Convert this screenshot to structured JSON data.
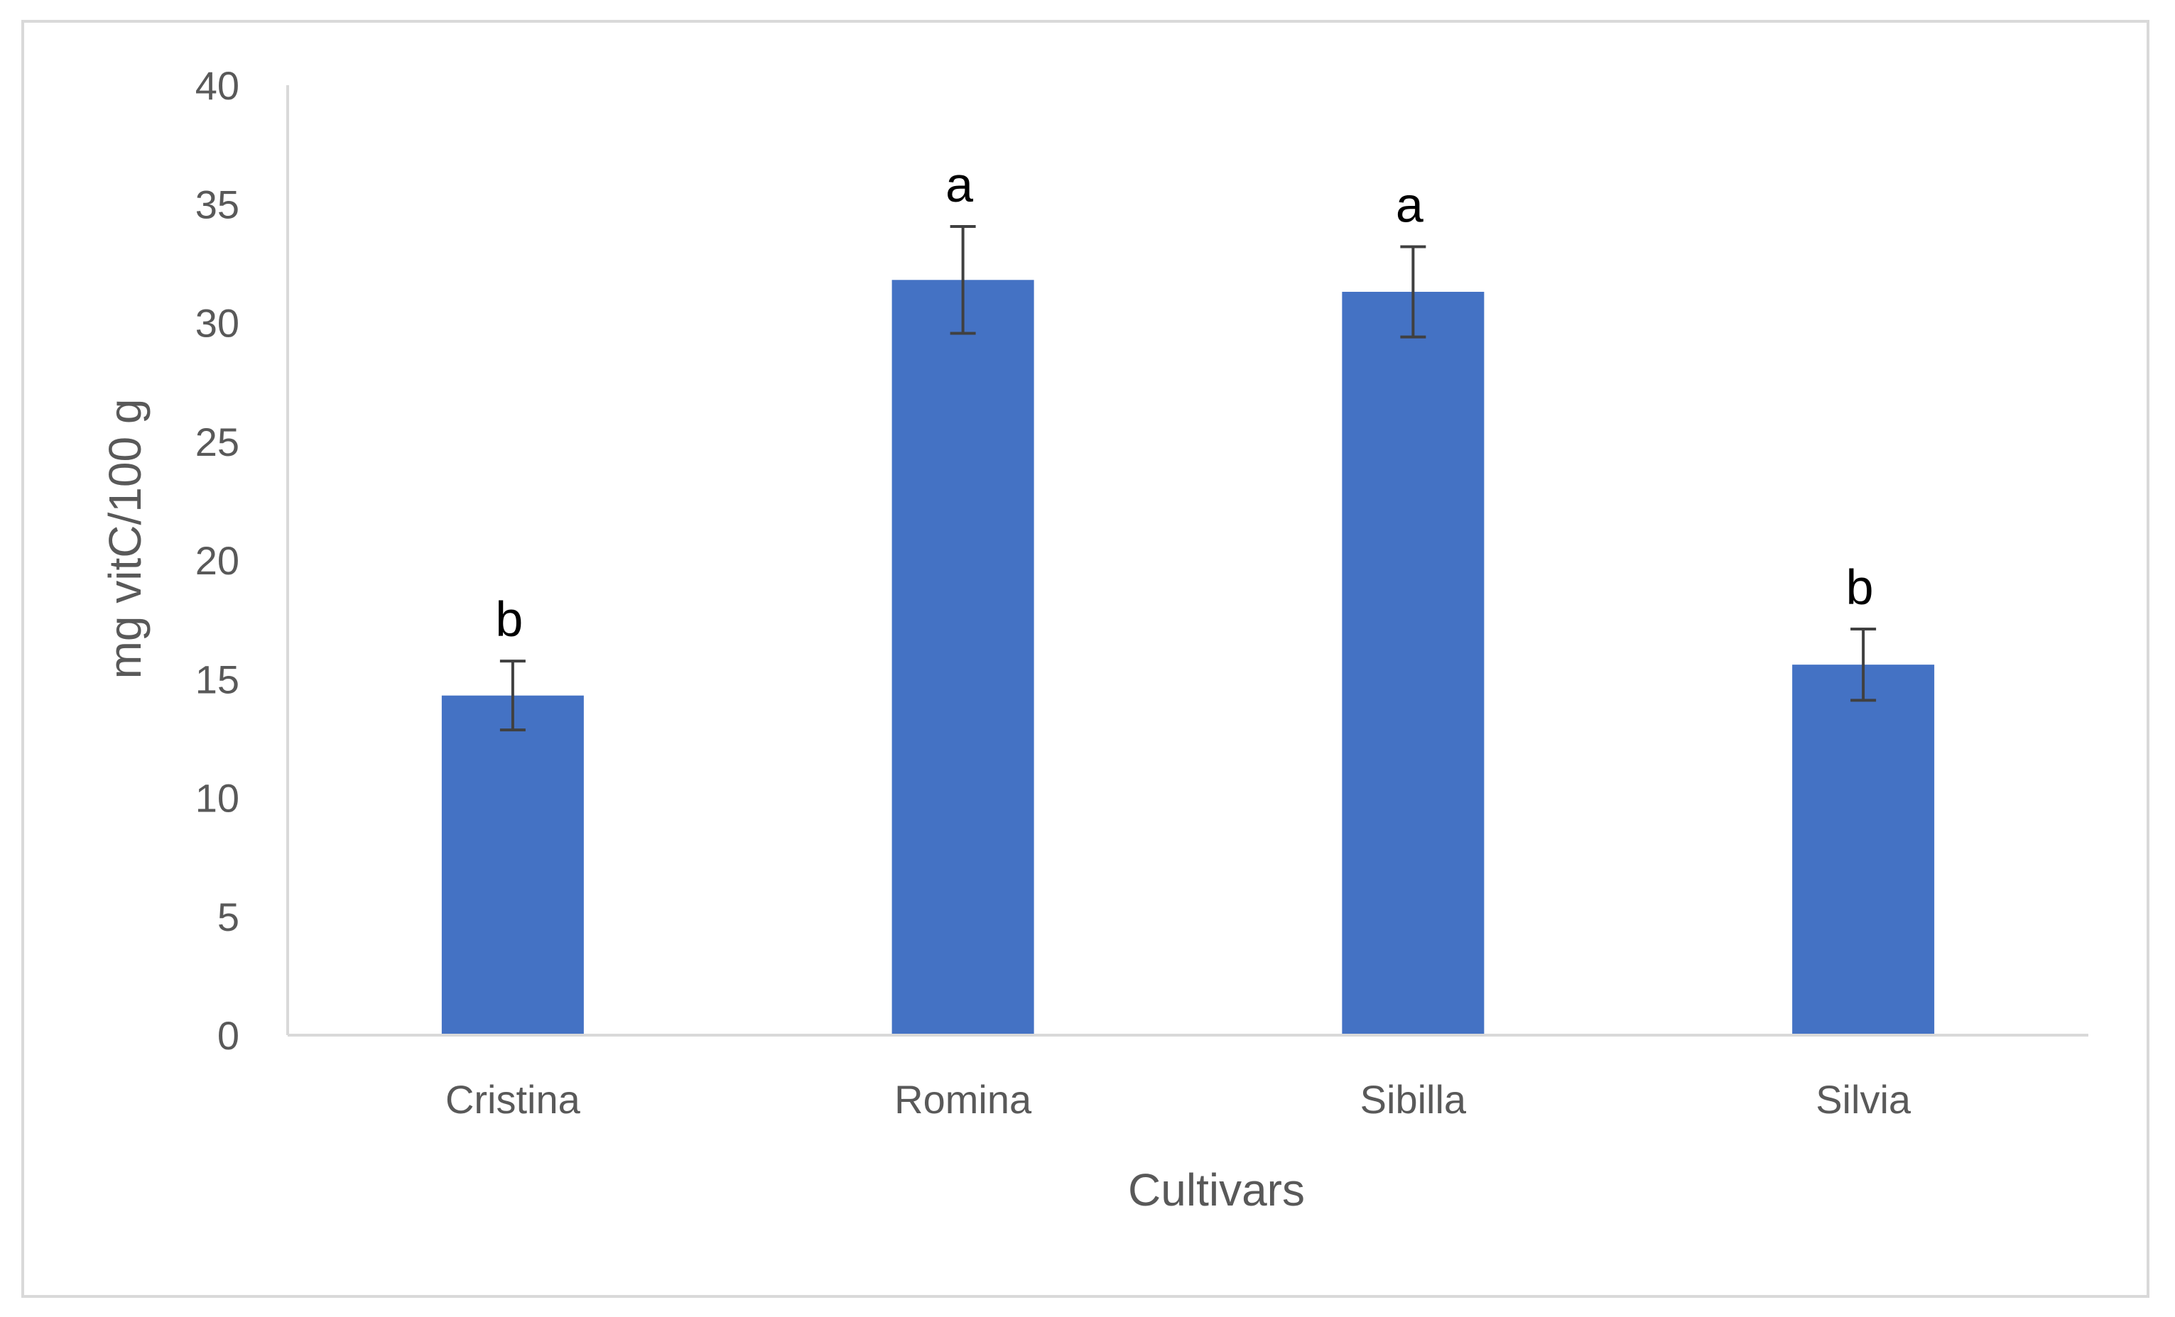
{
  "chart_data": {
    "type": "bar",
    "categories": [
      "Cristina",
      "Romina",
      "Sibilla",
      "Silvia"
    ],
    "values": [
      14.3,
      31.8,
      31.3,
      15.6
    ],
    "error": [
      1.45,
      2.25,
      1.9,
      1.5
    ],
    "significance": [
      "b",
      "a",
      "a",
      "b"
    ],
    "xlabel": "Cultivars",
    "ylabel": "mg vitC/100 g",
    "ylim": [
      0,
      40
    ],
    "yticks": [
      0,
      5,
      10,
      15,
      20,
      25,
      30,
      35,
      40
    ],
    "grid": false,
    "legend": "none",
    "bar_color": "#4472C4",
    "error_bar_color": "#404040",
    "axis_color": "#d9d9d9"
  }
}
